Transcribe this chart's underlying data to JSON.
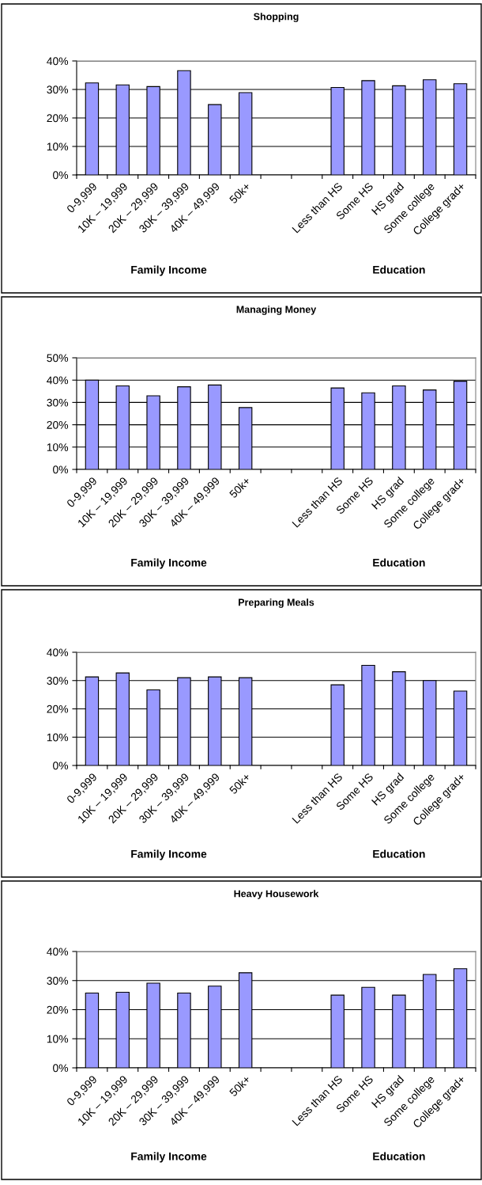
{
  "chart_data": [
    {
      "type": "bar",
      "title": "Shopping",
      "categories": [
        "0-9,999",
        "10K – 19,999",
        "20K – 29,999",
        "30K – 39,999",
        "40K – 49,999",
        "50k+",
        null,
        null,
        "Less than HS",
        "Some HS",
        "HS grad",
        "Some college",
        "College grad+"
      ],
      "color": "#9999ff",
      "values": [
        32.3,
        31.6,
        31.0,
        36.6,
        24.7,
        28.9,
        null,
        null,
        30.7,
        33.1,
        31.3,
        33.4,
        32.0
      ],
      "ylim": [
        0,
        40
      ],
      "yticks": [
        {
          "value": 0,
          "label": "0%"
        },
        {
          "value": 10,
          "label": "10%"
        },
        {
          "value": 20,
          "label": "20%"
        },
        {
          "value": 30,
          "label": "30%"
        },
        {
          "value": 40,
          "label": "40%"
        }
      ],
      "grid": "y",
      "annotations": [
        "Family Income",
        "Education"
      ]
    },
    {
      "type": "bar",
      "title": "Managing Money",
      "categories": [
        "0-9,999",
        "10K – 19,999",
        "20K – 29,999",
        "30K – 39,999",
        "40K – 49,999",
        "50k+",
        null,
        null,
        "Less than HS",
        "Some HS",
        "HS grad",
        "Some college",
        "College grad+"
      ],
      "color": "#9999ff",
      "values": [
        40.0,
        37.4,
        33.0,
        37.0,
        37.8,
        27.7,
        null,
        null,
        36.5,
        34.3,
        37.4,
        35.6,
        39.5
      ],
      "ylim": [
        0,
        50
      ],
      "yticks": [
        {
          "value": 0,
          "label": "0%"
        },
        {
          "value": 10,
          "label": "10%"
        },
        {
          "value": 20,
          "label": "20%"
        },
        {
          "value": 30,
          "label": "30%"
        },
        {
          "value": 40,
          "label": "40%"
        },
        {
          "value": 50,
          "label": "50%"
        }
      ],
      "grid": "y",
      "annotations": [
        "Family Income",
        "Education"
      ]
    },
    {
      "type": "bar",
      "title": "Preparing Meals",
      "categories": [
        "0-9,999",
        "10K – 19,999",
        "20K – 29,999",
        "30K – 39,999",
        "40K – 49,999",
        "50k+",
        null,
        null,
        "Less than HS",
        "Some HS",
        "HS grad",
        "Some college",
        "College grad+"
      ],
      "color": "#9999ff",
      "values": [
        31.3,
        32.7,
        26.7,
        31.0,
        31.3,
        31.0,
        null,
        null,
        28.5,
        35.4,
        33.1,
        30.0,
        26.3
      ],
      "ylim": [
        0,
        40
      ],
      "yticks": [
        {
          "value": 0,
          "label": "0%"
        },
        {
          "value": 10,
          "label": "10%"
        },
        {
          "value": 20,
          "label": "20%"
        },
        {
          "value": 30,
          "label": "30%"
        },
        {
          "value": 40,
          "label": "40%"
        }
      ],
      "grid": "y",
      "annotations": [
        "Family Income",
        "Education"
      ]
    },
    {
      "type": "bar",
      "title": "Heavy Housework",
      "categories": [
        "0-9,999",
        "10K – 19,999",
        "20K – 29,999",
        "30K – 39,999",
        "40K – 49,999",
        "50k+",
        null,
        null,
        "Less than HS",
        "Some HS",
        "HS grad",
        "Some college",
        "College grad+"
      ],
      "color": "#9999ff",
      "values": [
        25.7,
        26.0,
        29.1,
        25.7,
        28.1,
        32.7,
        null,
        null,
        25.0,
        27.7,
        25.0,
        32.1,
        34.1
      ],
      "ylim": [
        0,
        40
      ],
      "yticks": [
        {
          "value": 0,
          "label": "0%"
        },
        {
          "value": 10,
          "label": "10%"
        },
        {
          "value": 20,
          "label": "20%"
        },
        {
          "value": 30,
          "label": "30%"
        },
        {
          "value": 40,
          "label": "40%"
        }
      ],
      "grid": "y",
      "annotations": [
        "Family Income",
        "Education"
      ]
    }
  ]
}
